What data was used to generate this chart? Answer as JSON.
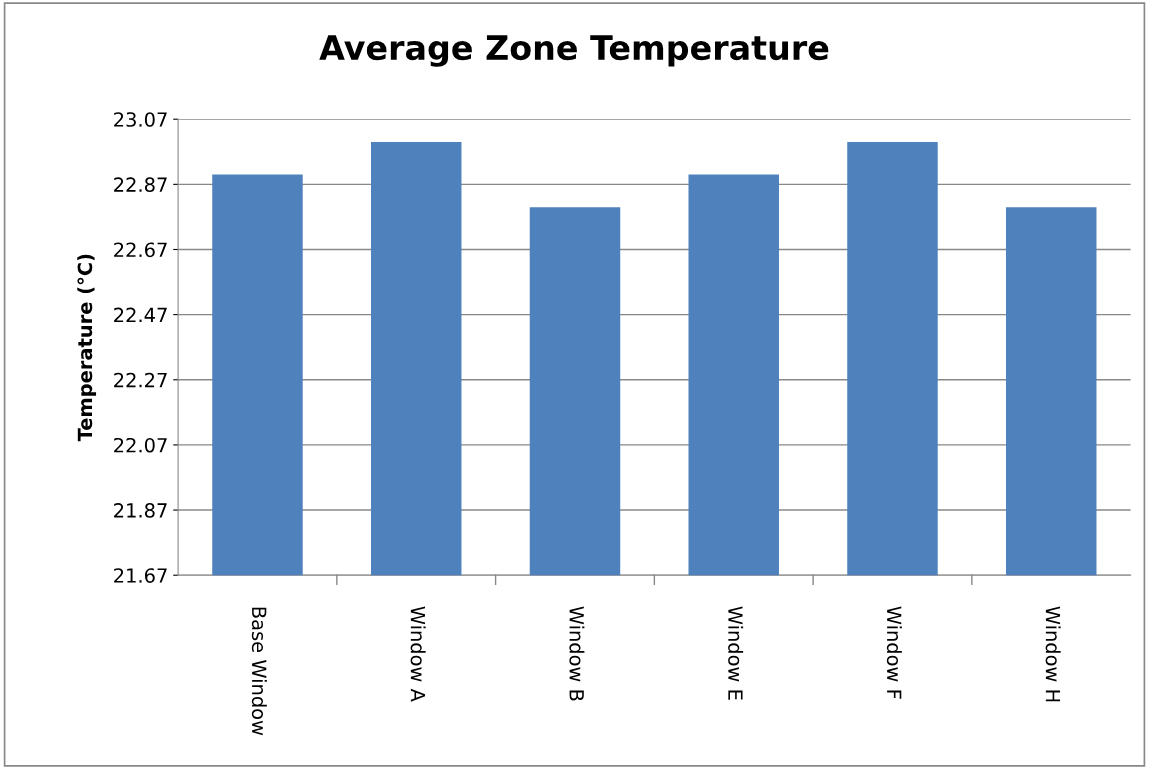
{
  "chart_data": {
    "type": "bar",
    "title": "Average Zone Temperature",
    "ylabel": "Temperature (°C)",
    "categories": [
      "Base Window",
      "Window A",
      "Window B",
      "Window E",
      "Window F",
      "Window H"
    ],
    "values": [
      22.9,
      23.0,
      22.8,
      22.9,
      23.0,
      22.8
    ],
    "color": "#4f81bd",
    "ylim": [
      21.67,
      23.07
    ],
    "yticks": [
      21.67,
      21.87,
      22.07,
      22.27,
      22.47,
      22.67,
      22.87,
      23.07
    ],
    "grid": "y"
  }
}
